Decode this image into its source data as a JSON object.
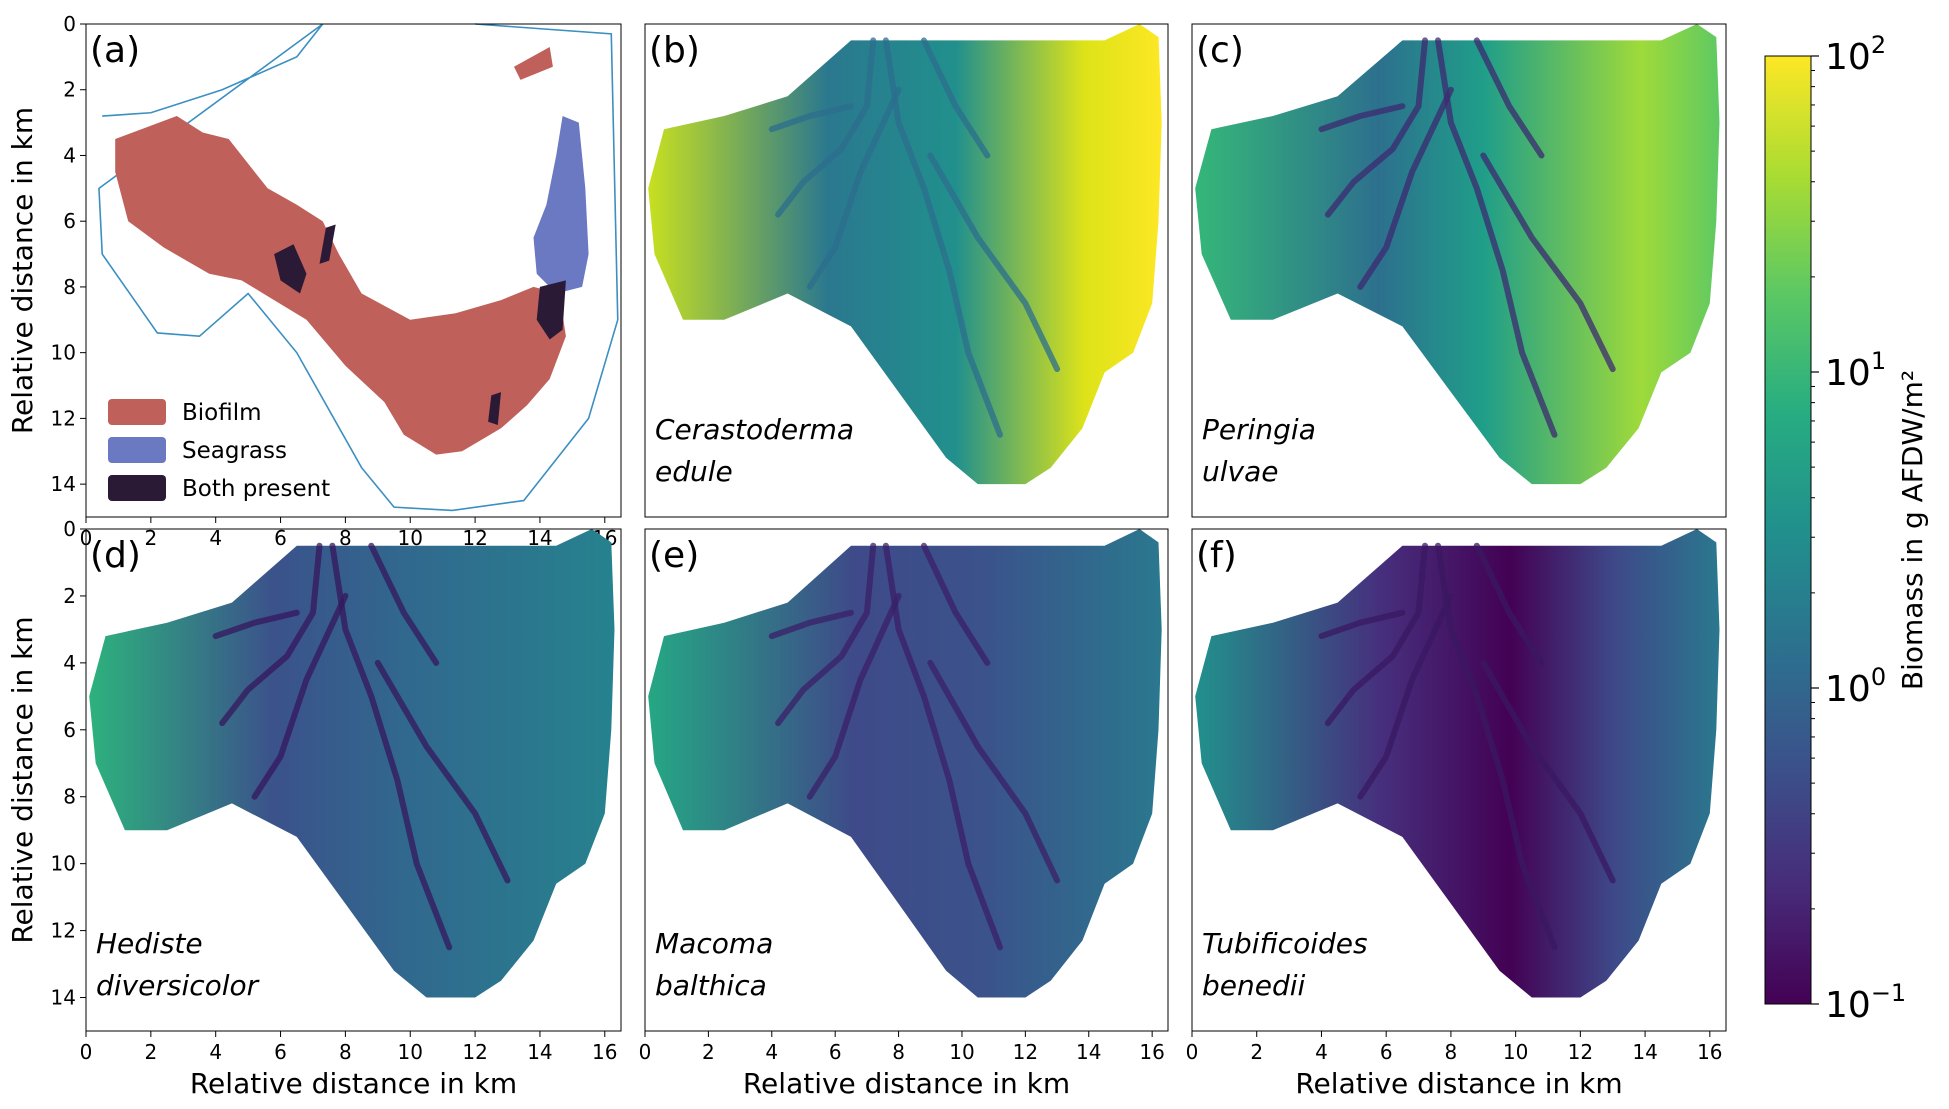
{
  "chart_data": [
    {
      "type": "heatmap",
      "panel": "(a)",
      "legend": [
        {
          "name": "Biofilm",
          "color": "#c0605a"
        },
        {
          "name": "Seagrass",
          "color": "#6b78c2"
        },
        {
          "name": "Both present",
          "color": "#2a1a35"
        }
      ],
      "outline_color": "#3b8fc2",
      "xlim": [
        0,
        16.5
      ],
      "ylim": [
        15,
        0
      ],
      "xticks": [
        "0",
        "2",
        "4",
        "6",
        "8",
        "10",
        "12",
        "14",
        "16"
      ],
      "yticks": [
        "0",
        "2",
        "4",
        "6",
        "8",
        "10",
        "12",
        "14"
      ],
      "ylabel": "Relative distance in km",
      "xlabel": ""
    },
    {
      "type": "heatmap",
      "panel": "(b)",
      "species": [
        "Cerastoderma",
        "edule"
      ],
      "relative_level": "high",
      "xlim": [
        0,
        16.5
      ],
      "ylim": [
        15,
        0
      ],
      "xticks": [],
      "yticks": []
    },
    {
      "type": "heatmap",
      "panel": "(c)",
      "species": [
        "Peringia",
        "ulvae"
      ],
      "relative_level": "medium-high",
      "xlim": [
        0,
        16.5
      ],
      "ylim": [
        15,
        0
      ],
      "xticks": [],
      "yticks": []
    },
    {
      "type": "heatmap",
      "panel": "(d)",
      "species": [
        "Hediste",
        "diversicolor"
      ],
      "relative_level": "medium",
      "xlim": [
        0,
        16.5
      ],
      "ylim": [
        15,
        0
      ],
      "xticks": [
        "0",
        "2",
        "4",
        "6",
        "8",
        "10",
        "12",
        "14",
        "16"
      ],
      "yticks": [
        "0",
        "2",
        "4",
        "6",
        "8",
        "10",
        "12",
        "14"
      ],
      "xlabel": "Relative distance in km",
      "ylabel": "Relative distance in km"
    },
    {
      "type": "heatmap",
      "panel": "(e)",
      "species": [
        "Macoma",
        "balthica"
      ],
      "relative_level": "medium",
      "xlim": [
        0,
        16.5
      ],
      "ylim": [
        15,
        0
      ],
      "xticks": [
        "0",
        "2",
        "4",
        "6",
        "8",
        "10",
        "12",
        "14",
        "16"
      ],
      "yticks": [],
      "xlabel": "Relative distance in km"
    },
    {
      "type": "heatmap",
      "panel": "(f)",
      "species": [
        "Tubificoides",
        "benedii"
      ],
      "relative_level": "low",
      "xlim": [
        0,
        16.5
      ],
      "ylim": [
        15,
        0
      ],
      "xticks": [
        "0",
        "2",
        "4",
        "6",
        "8",
        "10",
        "12",
        "14",
        "16"
      ],
      "yticks": [],
      "xlabel": "Relative distance in km"
    }
  ],
  "colorbar": {
    "label": "Biomass in g AFDW/m²",
    "scale": "log",
    "range": [
      0.1,
      100
    ],
    "ticks": [
      {
        "base": "10",
        "exp": "2",
        "value": 100
      },
      {
        "base": "10",
        "exp": "1",
        "value": 10
      },
      {
        "base": "10",
        "exp": "0",
        "value": 1
      },
      {
        "base": "10",
        "exp": "−1",
        "value": 0.1
      }
    ],
    "colormap": [
      "#440154",
      "#472c7a",
      "#3b518b",
      "#2c718e",
      "#21908d",
      "#27ad81",
      "#5cc863",
      "#aadc32",
      "#fde725"
    ]
  }
}
